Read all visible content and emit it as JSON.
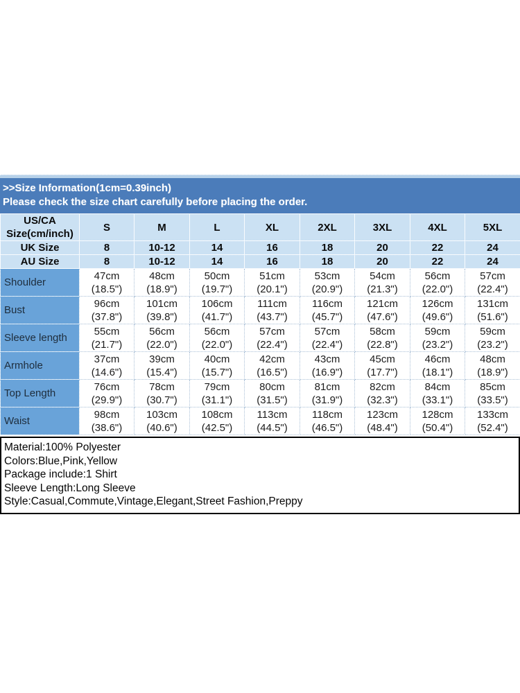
{
  "banner": {
    "line1": ">>Size Information(1cm=0.39inch)",
    "line2": "Please check the size chart carefully before placing the order."
  },
  "table": {
    "corner_label_line1": "US/CA",
    "corner_label_line2": "Size(cm/inch)",
    "size_headers": [
      "S",
      "M",
      "L",
      "XL",
      "2XL",
      "3XL",
      "4XL",
      "5XL"
    ],
    "size_rows": [
      {
        "label": "UK Size",
        "values": [
          "8",
          "10-12",
          "14",
          "16",
          "18",
          "20",
          "22",
          "24"
        ]
      },
      {
        "label": "AU Size",
        "values": [
          "8",
          "10-12",
          "14",
          "16",
          "18",
          "20",
          "22",
          "24"
        ]
      }
    ],
    "measure_rows": [
      {
        "label": "Shoulder",
        "cells": [
          {
            "cm": "47cm",
            "in": "(18.5\")"
          },
          {
            "cm": "48cm",
            "in": "(18.9\")"
          },
          {
            "cm": "50cm",
            "in": "(19.7\")"
          },
          {
            "cm": "51cm",
            "in": "(20.1\")"
          },
          {
            "cm": "53cm",
            "in": "(20.9\")"
          },
          {
            "cm": "54cm",
            "in": "(21.3\")"
          },
          {
            "cm": "56cm",
            "in": "(22.0\")"
          },
          {
            "cm": "57cm",
            "in": "(22.4\")"
          }
        ]
      },
      {
        "label": "Bust",
        "cells": [
          {
            "cm": "96cm",
            "in": "(37.8\")"
          },
          {
            "cm": "101cm",
            "in": "(39.8\")"
          },
          {
            "cm": "106cm",
            "in": "(41.7\")"
          },
          {
            "cm": "111cm",
            "in": "(43.7\")"
          },
          {
            "cm": "116cm",
            "in": "(45.7\")"
          },
          {
            "cm": "121cm",
            "in": "(47.6\")"
          },
          {
            "cm": "126cm",
            "in": "(49.6\")"
          },
          {
            "cm": "131cm",
            "in": "(51.6\")"
          }
        ]
      },
      {
        "label": "Sleeve length",
        "cells": [
          {
            "cm": "55cm",
            "in": "(21.7\")"
          },
          {
            "cm": "56cm",
            "in": "(22.0\")"
          },
          {
            "cm": "56cm",
            "in": "(22.0\")"
          },
          {
            "cm": "57cm",
            "in": "(22.4\")"
          },
          {
            "cm": "57cm",
            "in": "(22.4\")"
          },
          {
            "cm": "58cm",
            "in": "(22.8\")"
          },
          {
            "cm": "59cm",
            "in": "(23.2\")"
          },
          {
            "cm": "59cm",
            "in": "(23.2\")"
          }
        ]
      },
      {
        "label": "Armhole",
        "cells": [
          {
            "cm": "37cm",
            "in": "(14.6\")"
          },
          {
            "cm": "39cm",
            "in": "(15.4\")"
          },
          {
            "cm": "40cm",
            "in": "(15.7\")"
          },
          {
            "cm": "42cm",
            "in": "(16.5\")"
          },
          {
            "cm": "43cm",
            "in": "(16.9\")"
          },
          {
            "cm": "45cm",
            "in": "(17.7\")"
          },
          {
            "cm": "46cm",
            "in": "(18.1\")"
          },
          {
            "cm": "48cm",
            "in": "(18.9\")"
          }
        ]
      },
      {
        "label": "Top Length",
        "cells": [
          {
            "cm": "76cm",
            "in": "(29.9\")"
          },
          {
            "cm": "78cm",
            "in": "(30.7\")"
          },
          {
            "cm": "79cm",
            "in": "(31.1\")"
          },
          {
            "cm": "80cm",
            "in": "(31.5\")"
          },
          {
            "cm": "81cm",
            "in": "(31.9\")"
          },
          {
            "cm": "82cm",
            "in": "(32.3\")"
          },
          {
            "cm": "84cm",
            "in": "(33.1\")"
          },
          {
            "cm": "85cm",
            "in": "(33.5\")"
          }
        ]
      },
      {
        "label": "Waist",
        "cells": [
          {
            "cm": "98cm",
            "in": "(38.6\")"
          },
          {
            "cm": "103cm",
            "in": "(40.6\")"
          },
          {
            "cm": "108cm",
            "in": "(42.5\")"
          },
          {
            "cm": "113cm",
            "in": "(44.5\")"
          },
          {
            "cm": "118cm",
            "in": "(46.5\")"
          },
          {
            "cm": "123cm",
            "in": "(48.4\")"
          },
          {
            "cm": "128cm",
            "in": "(50.4\")"
          },
          {
            "cm": "133cm",
            "in": "(52.4\")"
          }
        ]
      }
    ]
  },
  "details": {
    "lines": [
      "Material:100% Polyester",
      "Colors:Blue,Pink,Yellow",
      "Package include:1 Shirt",
      "Sleeve Length:Long Sleeve",
      "Style:Casual,Commute,Vintage,Elegant,Street Fashion,Preppy"
    ]
  },
  "colors": {
    "banner_blue": "#4b7cba",
    "header_light_blue": "#cbe1f3",
    "label_blue": "#69a3d9",
    "edge_strip_blue": "#b7d1e9",
    "grid_dot_blue": "#a9bfd6",
    "details_border": "#000000"
  }
}
